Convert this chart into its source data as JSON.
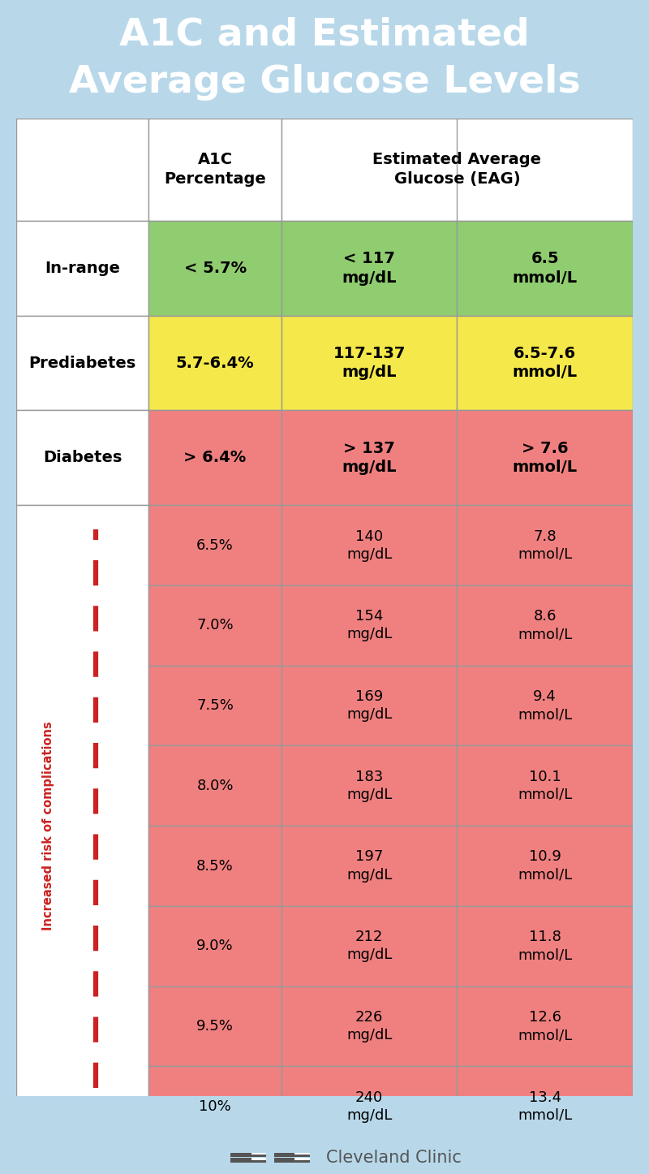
{
  "title": "A1C and Estimated\nAverage Glucose Levels",
  "title_bg": "#1a9cd8",
  "title_color": "#ffffff",
  "bg_color": "#b8d8ea",
  "summary_rows": [
    {
      "label": "In-range",
      "a1c": "< 5.7%",
      "mgdl": "< 117\nmg/dL",
      "mmol": "6.5\nmmol/L",
      "cell_bg": "#90cc70"
    },
    {
      "label": "Prediabetes",
      "a1c": "5.7-6.4%",
      "mgdl": "117-137\nmg/dL",
      "mmol": "6.5-7.6\nmmol/L",
      "cell_bg": "#f5e84a"
    },
    {
      "label": "Diabetes",
      "a1c": "> 6.4%",
      "mgdl": "> 137\nmg/dL",
      "mmol": "> 7.6\nmmol/L",
      "cell_bg": "#f08080"
    }
  ],
  "detail_rows": [
    {
      "a1c": "6.5%",
      "mgdl": "140\nmg/dL",
      "mmol": "7.8\nmmol/L",
      "cell_bg": "#f08080"
    },
    {
      "a1c": "7.0%",
      "mgdl": "154\nmg/dL",
      "mmol": "8.6\nmmol/L",
      "cell_bg": "#f08080"
    },
    {
      "a1c": "7.5%",
      "mgdl": "169\nmg/dL",
      "mmol": "9.4\nmmol/L",
      "cell_bg": "#f08080"
    },
    {
      "a1c": "8.0%",
      "mgdl": "183\nmg/dL",
      "mmol": "10.1\nmmol/L",
      "cell_bg": "#f08080"
    },
    {
      "a1c": "8.5%",
      "mgdl": "197\nmg/dL",
      "mmol": "10.9\nmmol/L",
      "cell_bg": "#f08080"
    },
    {
      "a1c": "9.0%",
      "mgdl": "212\nmg/dL",
      "mmol": "11.8\nmmol/L",
      "cell_bg": "#f08080"
    },
    {
      "a1c": "9.5%",
      "mgdl": "226\nmg/dL",
      "mmol": "12.6\nmmol/L",
      "cell_bg": "#f08080"
    },
    {
      "a1c": "10%",
      "mgdl": "240\nmg/dL",
      "mmol": "13.4\nmmol/L",
      "cell_bg": "#f08080"
    }
  ],
  "arrow_label": "Increased risk of complications",
  "arrow_color": "#cc2222",
  "logo_text": "Cleveland Clinic",
  "logo_color": "#555555",
  "border_color": "#999999"
}
